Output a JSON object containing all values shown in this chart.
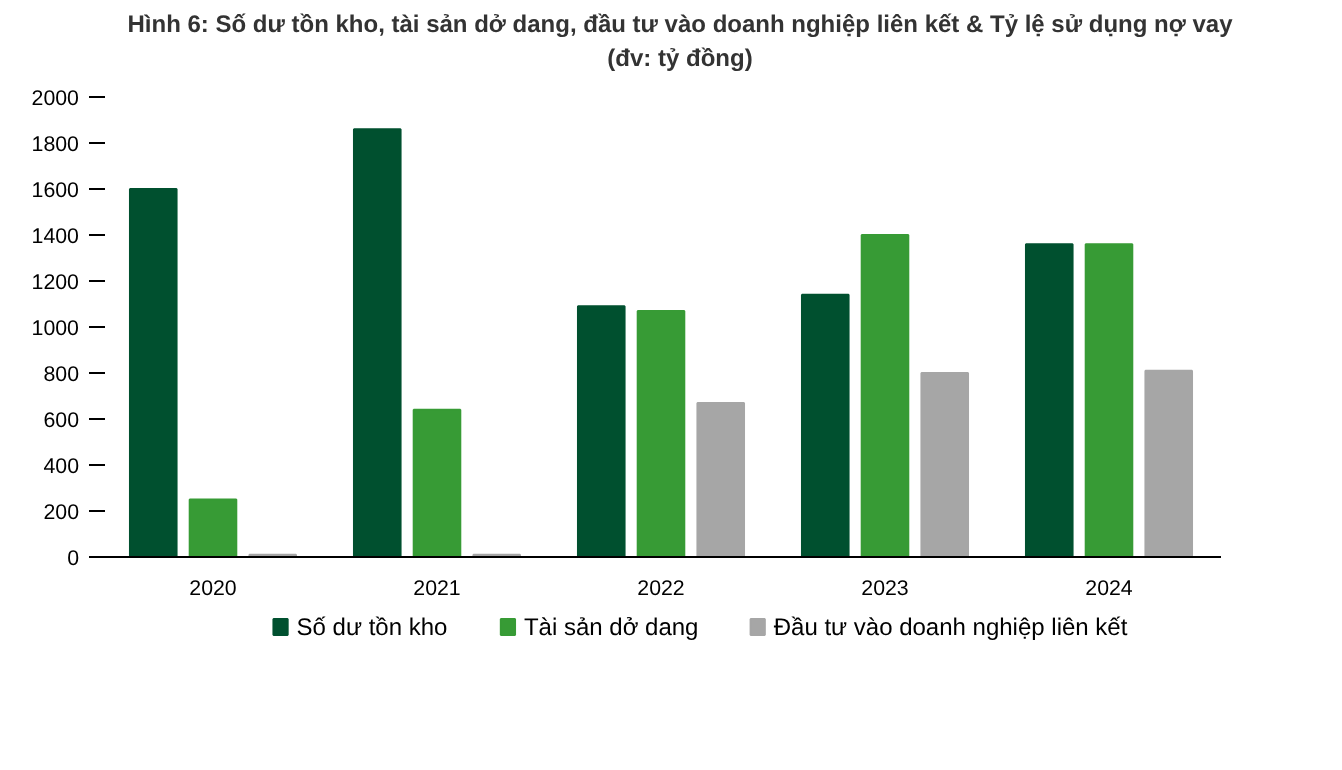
{
  "chart_data": {
    "type": "bar",
    "title": "Hình 6: Số dư tồn kho, tài sản dở dang, đầu tư vào doanh nghiệp liên kết & Tỷ lệ sử dụng nợ vay (đv: tỷ đồng)",
    "categories": [
      "2020",
      "2021",
      "2022",
      "2023",
      "2024"
    ],
    "series": [
      {
        "name": "Số dư tồn kho",
        "color": "#00502f",
        "values": [
          1600,
          1860,
          1090,
          1140,
          1360
        ]
      },
      {
        "name": "Tài sản dở dang",
        "color": "#379b35",
        "values": [
          250,
          640,
          1070,
          1400,
          1360
        ]
      },
      {
        "name": "Đầu tư vào doanh nghiệp liên kết",
        "color": "#a6a6a6",
        "values": [
          10,
          10,
          670,
          800,
          810
        ]
      }
    ],
    "ylim": [
      0,
      2000
    ],
    "yticks": [
      0,
      200,
      400,
      600,
      800,
      1000,
      1200,
      1400,
      1600,
      1800,
      2000
    ],
    "grid": false,
    "legend": "bottom"
  }
}
